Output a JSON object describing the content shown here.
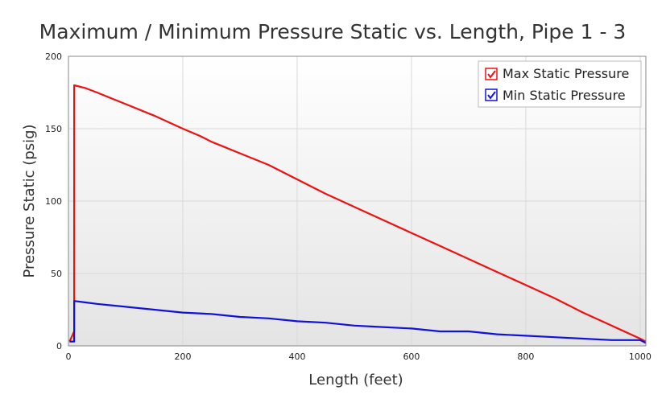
{
  "chart_data": {
    "type": "line",
    "title": "Maximum / Minimum Pressure Static vs. Length, Pipe 1 - 3",
    "xlabel": "Length (feet)",
    "ylabel": "Pressure Static (psig)",
    "xlim": [
      0,
      1010
    ],
    "ylim": [
      0,
      200
    ],
    "xticks": [
      0,
      200,
      400,
      600,
      800,
      1000
    ],
    "yticks": [
      0,
      50,
      100,
      150,
      200
    ],
    "xtick_labels": [
      "0",
      "200",
      "400",
      "600",
      "800",
      "1000"
    ],
    "ytick_labels": [
      "0",
      "50",
      "100",
      "150",
      "200"
    ],
    "grid": true,
    "legend_position": "top-right",
    "series": [
      {
        "name": "Max Static Pressure",
        "color": "#ee1111",
        "points": [
          [
            2,
            3
          ],
          [
            10,
            10
          ],
          [
            10,
            180
          ],
          [
            30,
            178
          ],
          [
            50,
            175
          ],
          [
            100,
            167
          ],
          [
            150,
            159
          ],
          [
            200,
            150
          ],
          [
            230,
            145
          ],
          [
            250,
            141
          ],
          [
            300,
            133
          ],
          [
            350,
            125
          ],
          [
            400,
            115
          ],
          [
            450,
            105
          ],
          [
            500,
            96
          ],
          [
            550,
            87
          ],
          [
            600,
            78
          ],
          [
            650,
            69
          ],
          [
            700,
            60
          ],
          [
            750,
            51
          ],
          [
            800,
            42
          ],
          [
            850,
            33
          ],
          [
            900,
            23
          ],
          [
            950,
            14
          ],
          [
            1000,
            5
          ],
          [
            1010,
            3
          ]
        ]
      },
      {
        "name": "Min Static Pressure",
        "color": "#1111dd",
        "points": [
          [
            2,
            3
          ],
          [
            10,
            3
          ],
          [
            10,
            31
          ],
          [
            30,
            30
          ],
          [
            50,
            29
          ],
          [
            100,
            27
          ],
          [
            150,
            25
          ],
          [
            200,
            23
          ],
          [
            250,
            22
          ],
          [
            300,
            20
          ],
          [
            350,
            19
          ],
          [
            400,
            17
          ],
          [
            450,
            16
          ],
          [
            500,
            14
          ],
          [
            550,
            13
          ],
          [
            600,
            12
          ],
          [
            650,
            10
          ],
          [
            700,
            10
          ],
          [
            750,
            8
          ],
          [
            800,
            7
          ],
          [
            850,
            6
          ],
          [
            900,
            5
          ],
          [
            950,
            4
          ],
          [
            1000,
            4
          ],
          [
            1010,
            2
          ]
        ]
      }
    ]
  },
  "colors": {
    "plot_gradient_top": "#ffffff",
    "plot_gradient_bottom": "#e4e4e4",
    "grid": "#d9d9d9",
    "frame": "#888888"
  }
}
